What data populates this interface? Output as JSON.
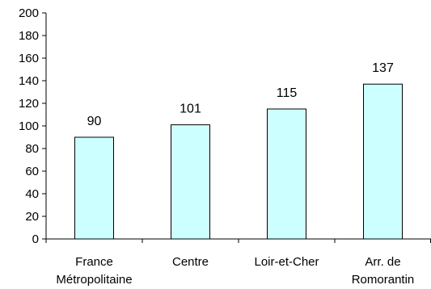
{
  "chart_data": {
    "type": "bar",
    "categories": [
      [
        "France",
        "Métropolitaine"
      ],
      [
        "Centre"
      ],
      [
        "Loir-et-Cher"
      ],
      [
        "Arr. de",
        "Romorantin"
      ]
    ],
    "values": [
      90,
      101,
      115,
      137
    ],
    "data_labels": [
      "90",
      "101",
      "115",
      "137"
    ],
    "ylim": [
      0,
      200
    ],
    "yticks": [
      0,
      20,
      40,
      60,
      80,
      100,
      120,
      140,
      160,
      180,
      200
    ],
    "title": "",
    "xlabel": "",
    "ylabel": "",
    "grid": false,
    "bar_fill": "#ccffff",
    "bar_stroke": "#000000"
  }
}
